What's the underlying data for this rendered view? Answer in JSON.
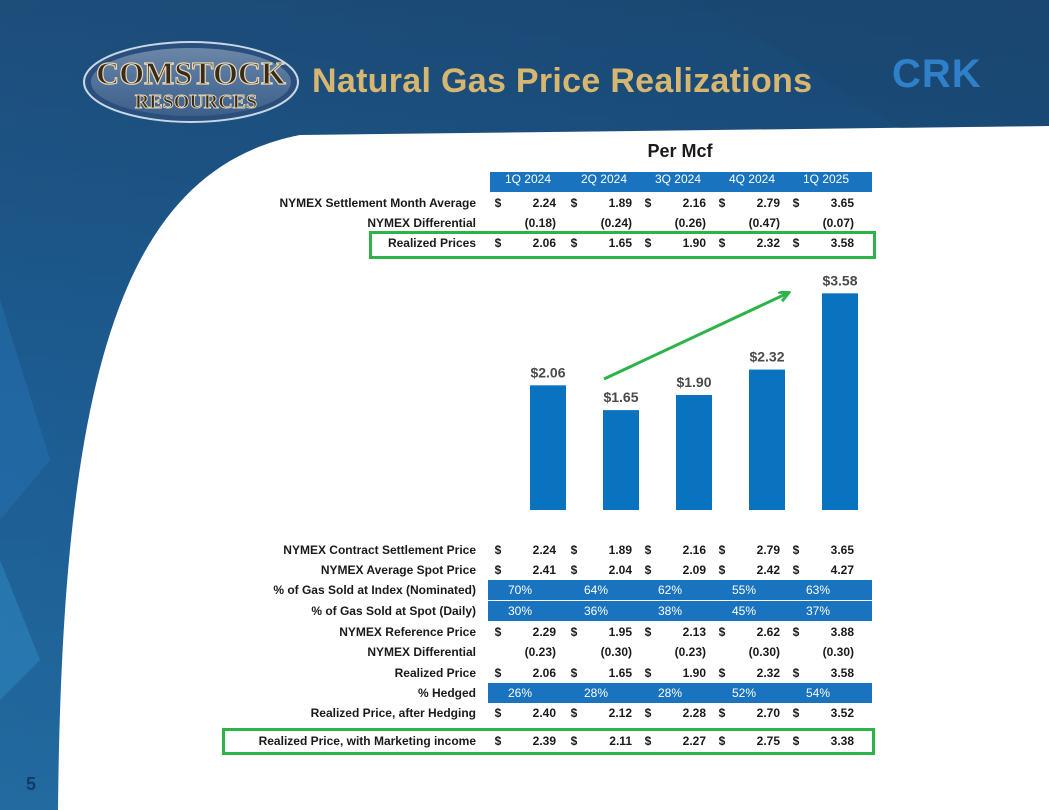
{
  "header": {
    "title": "Natural Gas Price Realizations",
    "logo_line1": "COMSTOCK",
    "logo_line2": "RESOURCES",
    "ticker": "CRK"
  },
  "page_number": "5",
  "colors": {
    "band_blue": "#1a73bf",
    "bar_blue": "#0a73c0",
    "highlight_green": "#2db34a",
    "title_gold": "#d7b670"
  },
  "unit_label": "Per Mcf",
  "quarters": [
    "1Q 2024",
    "2Q 2024",
    "3Q 2024",
    "4Q 2024",
    "1Q 2025"
  ],
  "top_table": [
    {
      "label": "NYMEX Settlement Month Average",
      "dollar": true,
      "values": [
        "2.24",
        "1.89",
        "2.16",
        "2.79",
        "3.65"
      ]
    },
    {
      "label": "NYMEX Differential",
      "dollar": false,
      "values": [
        "(0.18)",
        "(0.24)",
        "(0.26)",
        "(0.47)",
        "(0.07)"
      ]
    },
    {
      "label": "Realized Prices",
      "dollar": true,
      "values": [
        "2.06",
        "1.65",
        "1.90",
        "2.32",
        "3.58"
      ]
    }
  ],
  "chart_data": {
    "type": "bar",
    "categories": [
      "1Q 2024",
      "2Q 2024",
      "3Q 2024",
      "4Q 2024",
      "1Q 2025"
    ],
    "values": [
      2.06,
      1.65,
      1.9,
      2.32,
      3.58
    ],
    "labels": [
      "$2.06",
      "$1.65",
      "$1.90",
      "$2.32",
      "$3.58"
    ],
    "ylim": [
      0,
      3.8
    ],
    "grid": false,
    "annotation": "upward trend arrow from 2Q 2024 to 1Q 2025"
  },
  "bottom_table": [
    {
      "label": "NYMEX Contract Settlement Price",
      "kind": "dollar",
      "values": [
        "2.24",
        "1.89",
        "2.16",
        "2.79",
        "3.65"
      ]
    },
    {
      "label": "NYMEX Average Spot Price",
      "kind": "dollar",
      "values": [
        "2.41",
        "2.04",
        "2.09",
        "2.42",
        "4.27"
      ]
    },
    {
      "label": "% of Gas Sold at Index (Nominated)",
      "kind": "pct",
      "values": [
        "70%",
        "64%",
        "62%",
        "55%",
        "63%"
      ]
    },
    {
      "label": "% of Gas Sold at Spot (Daily)",
      "kind": "pct",
      "values": [
        "30%",
        "36%",
        "38%",
        "45%",
        "37%"
      ]
    },
    {
      "label": "NYMEX Reference Price",
      "kind": "dollar",
      "values": [
        "2.29",
        "1.95",
        "2.13",
        "2.62",
        "3.88"
      ]
    },
    {
      "label": "NYMEX Differential",
      "kind": "plain",
      "values": [
        "(0.23)",
        "(0.30)",
        "(0.23)",
        "(0.30)",
        "(0.30)"
      ]
    },
    {
      "label": "Realized Price",
      "kind": "dollar",
      "values": [
        "2.06",
        "1.65",
        "1.90",
        "2.32",
        "3.58"
      ]
    },
    {
      "label": "% Hedged",
      "kind": "pct",
      "values": [
        "26%",
        "28%",
        "28%",
        "52%",
        "54%"
      ]
    },
    {
      "label": "Realized Price, after Hedging",
      "kind": "dollar",
      "values": [
        "2.40",
        "2.12",
        "2.28",
        "2.70",
        "3.52"
      ]
    },
    {
      "label": "Realized Price, with Marketing income",
      "kind": "dollar",
      "values": [
        "2.39",
        "2.11",
        "2.27",
        "2.75",
        "3.38"
      ]
    }
  ],
  "dollar_sign": "$"
}
